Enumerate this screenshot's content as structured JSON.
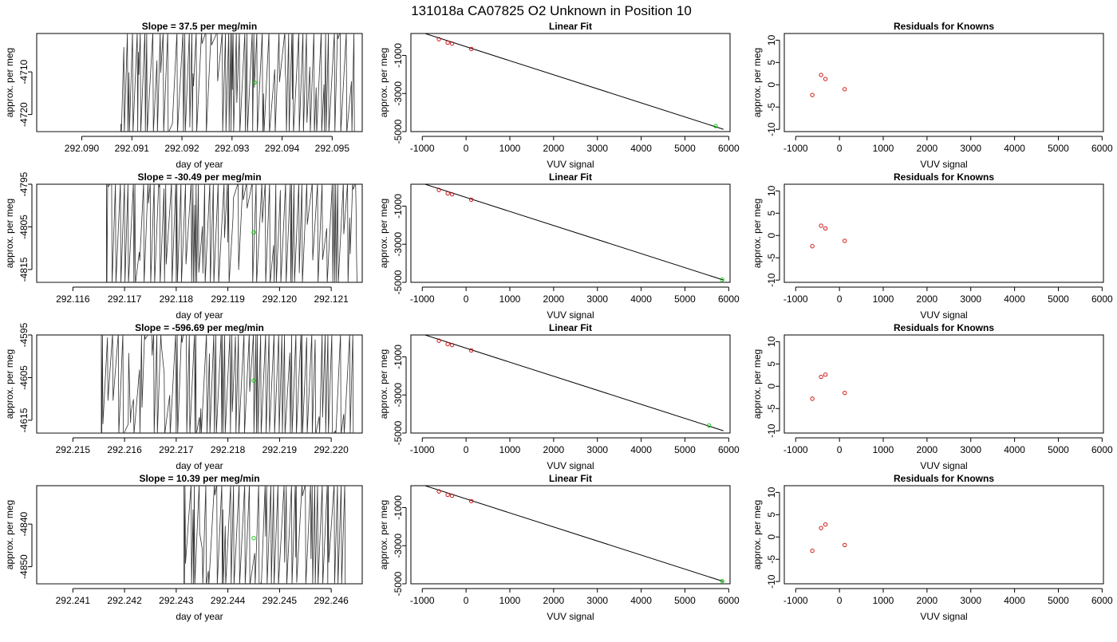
{
  "figure": {
    "suptitle": "131018a     CA07825   O2 Unknown in Position  10",
    "colors": {
      "line": "#000000",
      "trace": "#333333",
      "unknown_point": "#00cc00",
      "known_point": "#cc0000"
    }
  },
  "chart_data": [
    {
      "type": "line",
      "panel": "timeseries",
      "row": 1,
      "title": "Slope =  37.5  per meg/min",
      "xlabel": "day of year",
      "ylabel": "approx. per meg",
      "xlim": [
        292.0891,
        292.0956
      ],
      "ylim": [
        -4724,
        -4701
      ],
      "xticks": [
        292.09,
        292.091,
        292.092,
        292.093,
        292.094,
        292.095
      ],
      "xtick_labels": [
        "292.090",
        "292.091",
        "292.092",
        "292.093",
        "292.094",
        "292.095"
      ],
      "yticks": [
        -4710,
        -4720
      ],
      "ytick_labels": [
        "-4710",
        "-4720"
      ],
      "trace_start": 292.09078,
      "trace_end": 292.09546,
      "trace_baseline": -4724,
      "unknown_point": {
        "x": 292.09345,
        "y": -4712.5
      }
    },
    {
      "type": "scatter",
      "panel": "fit",
      "row": 1,
      "title": "Linear Fit",
      "xlabel": "VUV signal",
      "ylabel": "approx. per meg",
      "xlim": [
        -1260,
        6030
      ],
      "ylim": [
        -5000,
        150
      ],
      "xticks": [
        -1000,
        0,
        1000,
        2000,
        3000,
        4000,
        5000,
        6000
      ],
      "xtick_labels": [
        "-1000",
        "0",
        "1000",
        "2000",
        "3000",
        "4000",
        "5000",
        "6000"
      ],
      "yticks": [
        -1000,
        -3000,
        -5000
      ],
      "ytick_labels": [
        "-1000",
        "-3000",
        "-5000"
      ],
      "fit_line": {
        "x": [
          -1100,
          5880
        ],
        "y": [
          270,
          -4880
        ]
      },
      "knowns": {
        "x": [
          -620,
          -420,
          -320,
          120
        ],
        "y": [
          -150,
          -330,
          -380,
          -660
        ]
      },
      "unknown": {
        "x": 5700,
        "y": -4710
      }
    },
    {
      "type": "scatter",
      "panel": "residuals",
      "row": 1,
      "title": "Residuals for Knowns",
      "xlabel": "VUV signal",
      "ylabel": "approx. per meg",
      "xlim": [
        -1260,
        6030
      ],
      "ylim": [
        -10.5,
        11.5
      ],
      "xticks": [
        -1000,
        0,
        1000,
        2000,
        3000,
        4000,
        5000,
        6000
      ],
      "xtick_labels": [
        "-1000",
        "0",
        "1000",
        "2000",
        "3000",
        "4000",
        "5000",
        "6000"
      ],
      "yticks": [
        -10,
        -5,
        0,
        5,
        10
      ],
      "ytick_labels": [
        "-10",
        "-5",
        "0",
        "5",
        "10"
      ],
      "x": [
        -620,
        -420,
        -320,
        120
      ],
      "y": [
        -2.3,
        2.2,
        1.3,
        -1.0
      ]
    },
    {
      "type": "line",
      "panel": "timeseries",
      "row": 2,
      "title": "Slope =  -30.49  per meg/min",
      "xlabel": "day of year",
      "ylabel": "approx. per meg",
      "xlim": [
        292.1153,
        292.1216
      ],
      "ylim": [
        -4818,
        -4795
      ],
      "xticks": [
        292.116,
        292.117,
        292.118,
        292.119,
        292.12,
        292.121
      ],
      "xtick_labels": [
        "292.116",
        "292.117",
        "292.118",
        "292.119",
        "292.120",
        "292.121"
      ],
      "yticks": [
        -4795,
        -4805,
        -4815
      ],
      "ytick_labels": [
        "-4795",
        "-4805",
        "-4815"
      ],
      "trace_start": 292.11665,
      "trace_end": 292.1215,
      "trace_baseline": -4818,
      "unknown_point": {
        "x": 292.1195,
        "y": -4806.3
      }
    },
    {
      "type": "scatter",
      "panel": "fit",
      "row": 2,
      "title": "Linear Fit",
      "xlabel": "VUV signal",
      "ylabel": "approx. per meg",
      "xlim": [
        -1260,
        6030
      ],
      "ylim": [
        -5000,
        150
      ],
      "xticks": [
        -1000,
        0,
        1000,
        2000,
        3000,
        4000,
        5000,
        6000
      ],
      "xtick_labels": [
        "-1000",
        "0",
        "1000",
        "2000",
        "3000",
        "4000",
        "5000",
        "6000"
      ],
      "yticks": [
        -1000,
        -3000,
        -5000
      ],
      "ytick_labels": [
        "-1000",
        "-3000",
        "-5000"
      ],
      "fit_line": {
        "x": [
          -1100,
          5880
        ],
        "y": [
          270,
          -4880
        ]
      },
      "knowns": {
        "x": [
          -620,
          -420,
          -320,
          120
        ],
        "y": [
          -150,
          -330,
          -380,
          -660
        ]
      },
      "unknown": {
        "x": 5850,
        "y": -4860
      }
    },
    {
      "type": "scatter",
      "panel": "residuals",
      "row": 2,
      "title": "Residuals for Knowns",
      "xlabel": "VUV signal",
      "ylabel": "approx. per meg",
      "xlim": [
        -1260,
        6030
      ],
      "ylim": [
        -10.5,
        11.5
      ],
      "xticks": [
        -1000,
        0,
        1000,
        2000,
        3000,
        4000,
        5000,
        6000
      ],
      "xtick_labels": [
        "-1000",
        "0",
        "1000",
        "2000",
        "3000",
        "4000",
        "5000",
        "6000"
      ],
      "yticks": [
        -10,
        -5,
        0,
        5,
        10
      ],
      "ytick_labels": [
        "-10",
        "-5",
        "0",
        "5",
        "10"
      ],
      "x": [
        -620,
        -420,
        -320,
        120
      ],
      "y": [
        -2.4,
        2.2,
        1.6,
        -1.2
      ]
    },
    {
      "type": "line",
      "panel": "timeseries",
      "row": 3,
      "title": "Slope =  -596.69  per meg/min",
      "xlabel": "day of year",
      "ylabel": "approx. per meg",
      "xlim": [
        292.2143,
        292.2206
      ],
      "ylim": [
        -4618,
        -4595
      ],
      "xticks": [
        292.215,
        292.216,
        292.217,
        292.218,
        292.219,
        292.22
      ],
      "xtick_labels": [
        "292.215",
        "292.216",
        "292.217",
        "292.218",
        "292.219",
        "292.220"
      ],
      "yticks": [
        -4595,
        -4605,
        -4615
      ],
      "ytick_labels": [
        "-4595",
        "-4605",
        "-4615"
      ],
      "trace_start": 292.21555,
      "trace_end": 292.22045,
      "trace_baseline": -4618,
      "unknown_point": {
        "x": 292.2185,
        "y": -4605.7
      }
    },
    {
      "type": "scatter",
      "panel": "fit",
      "row": 3,
      "title": "Linear Fit",
      "xlabel": "VUV signal",
      "ylabel": "approx. per meg",
      "xlim": [
        -1260,
        6030
      ],
      "ylim": [
        -5000,
        150
      ],
      "xticks": [
        -1000,
        0,
        1000,
        2000,
        3000,
        4000,
        5000,
        6000
      ],
      "xtick_labels": [
        "-1000",
        "0",
        "1000",
        "2000",
        "3000",
        "4000",
        "5000",
        "6000"
      ],
      "yticks": [
        -1000,
        -3000,
        -5000
      ],
      "ytick_labels": [
        "-1000",
        "-3000",
        "-5000"
      ],
      "fit_line": {
        "x": [
          -1100,
          5880
        ],
        "y": [
          270,
          -4880
        ]
      },
      "knowns": {
        "x": [
          -620,
          -420,
          -320,
          120
        ],
        "y": [
          -150,
          -330,
          -380,
          -660
        ]
      },
      "unknown": {
        "x": 5550,
        "y": -4610
      }
    },
    {
      "type": "scatter",
      "panel": "residuals",
      "row": 3,
      "title": "Residuals for Knowns",
      "xlabel": "VUV signal",
      "ylabel": "approx. per meg",
      "xlim": [
        -1260,
        6030
      ],
      "ylim": [
        -10.5,
        11.5
      ],
      "xticks": [
        -1000,
        0,
        1000,
        2000,
        3000,
        4000,
        5000,
        6000
      ],
      "xtick_labels": [
        "-1000",
        "0",
        "1000",
        "2000",
        "3000",
        "4000",
        "5000",
        "6000"
      ],
      "yticks": [
        -10,
        -5,
        0,
        5,
        10
      ],
      "ytick_labels": [
        "-10",
        "-5",
        "0",
        "5",
        "10"
      ],
      "x": [
        -620,
        -420,
        -320,
        120
      ],
      "y": [
        -2.8,
        2.1,
        2.6,
        -1.5
      ]
    },
    {
      "type": "line",
      "panel": "timeseries",
      "row": 4,
      "title": "Slope =  10.39  per meg/min",
      "xlabel": "day of year",
      "ylabel": "approx. per meg",
      "xlim": [
        292.2403,
        292.2466
      ],
      "ylim": [
        -4854,
        -4831
      ],
      "xticks": [
        292.241,
        292.242,
        292.243,
        292.244,
        292.245,
        292.246
      ],
      "xtick_labels": [
        "292.241",
        "292.242",
        "292.243",
        "292.244",
        "292.245",
        "292.246"
      ],
      "yticks": [
        -4840,
        -4850
      ],
      "ytick_labels": [
        "-4840",
        "-4850"
      ],
      "trace_start": 292.24315,
      "trace_end": 292.2463,
      "trace_baseline": -4854,
      "unknown_point": {
        "x": 292.2445,
        "y": -4843.3
      }
    },
    {
      "type": "scatter",
      "panel": "fit",
      "row": 4,
      "title": "Linear Fit",
      "xlabel": "VUV signal",
      "ylabel": "approx. per meg",
      "xlim": [
        -1260,
        6030
      ],
      "ylim": [
        -5000,
        150
      ],
      "xticks": [
        -1000,
        0,
        1000,
        2000,
        3000,
        4000,
        5000,
        6000
      ],
      "xtick_labels": [
        "-1000",
        "0",
        "1000",
        "2000",
        "3000",
        "4000",
        "5000",
        "6000"
      ],
      "yticks": [
        -1000,
        -3000,
        -5000
      ],
      "ytick_labels": [
        "-1000",
        "-3000",
        "-5000"
      ],
      "fit_line": {
        "x": [
          -1100,
          5880
        ],
        "y": [
          270,
          -4880
        ]
      },
      "knowns": {
        "x": [
          -620,
          -420,
          -320,
          120
        ],
        "y": [
          -150,
          -330,
          -380,
          -660
        ]
      },
      "unknown": {
        "x": 5850,
        "y": -4860
      }
    },
    {
      "type": "scatter",
      "panel": "residuals",
      "row": 4,
      "title": "Residuals for Knowns",
      "xlabel": "VUV signal",
      "ylabel": "approx. per meg",
      "xlim": [
        -1260,
        6030
      ],
      "ylim": [
        -10.5,
        11.5
      ],
      "xticks": [
        -1000,
        0,
        1000,
        2000,
        3000,
        4000,
        5000,
        6000
      ],
      "xtick_labels": [
        "-1000",
        "0",
        "1000",
        "2000",
        "3000",
        "4000",
        "5000",
        "6000"
      ],
      "yticks": [
        -10,
        -5,
        0,
        5,
        10
      ],
      "ytick_labels": [
        "-10",
        "-5",
        "0",
        "5",
        "10"
      ],
      "x": [
        -620,
        -420,
        -320,
        120
      ],
      "y": [
        -3.1,
        2.0,
        2.8,
        -1.8
      ]
    }
  ]
}
